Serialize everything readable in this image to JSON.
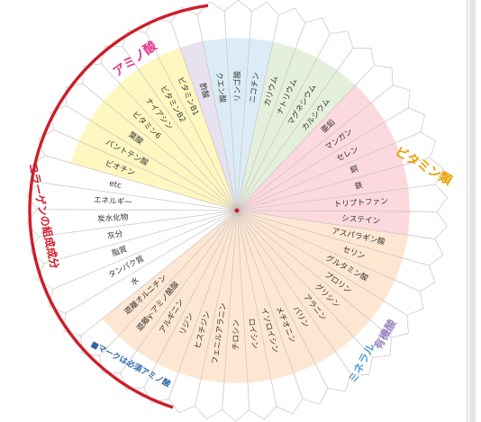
{
  "chart_data": {
    "type": "radial-segment-diagram",
    "groups": [
      {
        "id": "vitamins",
        "label": "ビタミン類",
        "color": "#e8a000",
        "fill": "#fff7c0",
        "items": [
          "ビオチン",
          "パントテン酸",
          "葉酸",
          "ビタミン6",
          "ナイアシン",
          "ビタミンB2",
          "ビタミンB1"
        ]
      },
      {
        "id": "organic-acids",
        "label": "有機酸",
        "color": "#9a86c0",
        "fill": "#e7e1f0",
        "items": [
          "酢酸"
        ]
      },
      {
        "id": "minerals",
        "label": "ミネラル",
        "color": "#5aa0d0",
        "fill": "#dcecf7",
        "items": [
          "クエン酸",
          "リンゴ酸",
          "ニコチン"
        ]
      },
      {
        "id": "misc",
        "label": "",
        "color": "#7a9a5a",
        "fill": "#e4f0dc",
        "items": [
          "カリウム",
          "ナトリウム",
          "マグネシウム",
          "カルシウム"
        ]
      },
      {
        "id": "collagen-amino",
        "label": "コラーゲンの組成成分",
        "color": "#cc1e2a",
        "fill": "#fbd9de",
        "items": [
          "亜鉛",
          "マンガン",
          "セレン",
          "銅",
          "鉄",
          "トリプトファン",
          "システイン"
        ]
      },
      {
        "id": "amino-acids",
        "label": "アミノ酸",
        "color": "#e2368a",
        "fill": "#fde7d2",
        "items": [
          "アスパラギン酸",
          "セリン",
          "グルタミン酸",
          "プロリン",
          "グリシン",
          "アラニン",
          "バリン",
          "メチオニン",
          "イソロイシン",
          "ロイシン",
          "チロシン",
          "フェニルアラニン",
          "ヒスチジン",
          "リジン",
          "アルギニン",
          "遊離γ-アミノ酪酸",
          "遊離オルニチン"
        ]
      },
      {
        "id": "basics",
        "label": "",
        "color": "#888888",
        "fill": "#ffffff",
        "items": [
          "水",
          "タンパク質",
          "脂質",
          "灰分",
          "炭水化物",
          "エネルギー",
          "etc"
        ]
      }
    ],
    "side_labels": {
      "vitamins": "ビタミン類",
      "organic_acids": "有機酸",
      "minerals": "ミネラル",
      "amino_acids": "アミノ酸",
      "collagen": "コラーゲンの組成成分",
      "essential_note": "■マークは必須アミノ酸"
    }
  }
}
